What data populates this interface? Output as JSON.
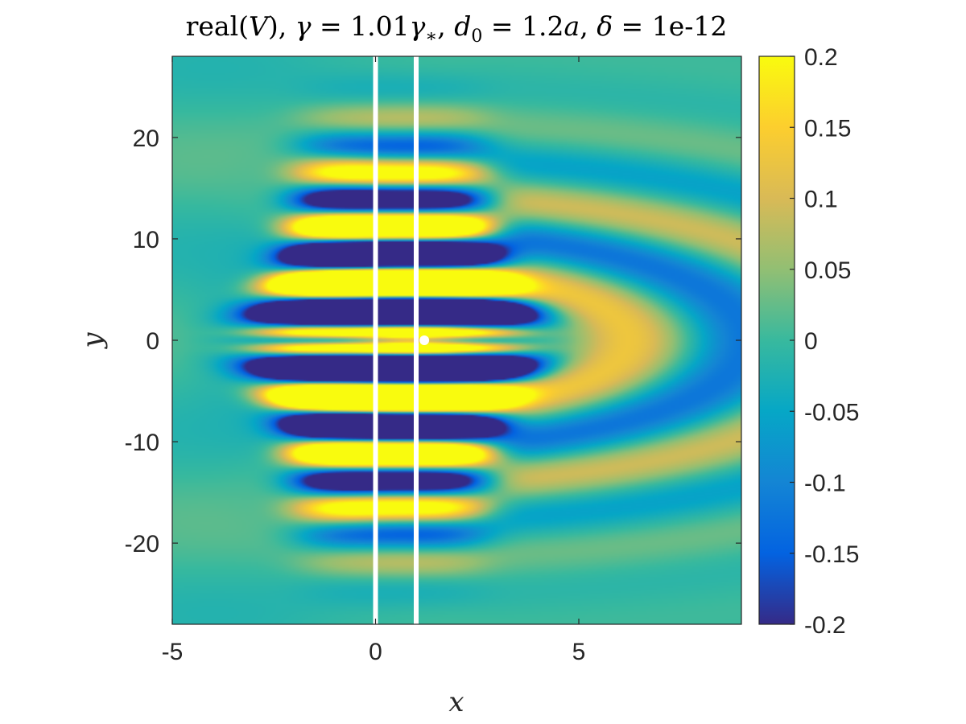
{
  "chart_data": {
    "type": "heatmap",
    "title": "real(V), γ = 1.01γ*, d0 = 1.2a, δ = 1e-12",
    "title_parts": {
      "p1": "real(",
      "p2": "V",
      "p3": "), ",
      "p4": "γ",
      "p5": " = 1.01",
      "p6": "γ",
      "p7": "∗",
      "p8": ", ",
      "p9": "d",
      "p10": "0",
      "p11": " = 1.2",
      "p12": "a",
      "p13": ", ",
      "p14": "δ",
      "p15": " = 1e-12"
    },
    "xlabel": "x",
    "ylabel": "y",
    "xlim": [
      -5,
      9
    ],
    "ylim": [
      -28,
      28
    ],
    "x_ticks": [
      {
        "value": -5,
        "label": "-5"
      },
      {
        "value": 0,
        "label": "0"
      },
      {
        "value": 5,
        "label": "5"
      }
    ],
    "y_ticks": [
      {
        "value": 20,
        "label": "20"
      },
      {
        "value": 10,
        "label": "10"
      },
      {
        "value": 0,
        "label": "0"
      },
      {
        "value": -10,
        "label": "-10"
      },
      {
        "value": -20,
        "label": "-20"
      }
    ],
    "colorbar": {
      "range": [
        -0.2,
        0.2
      ],
      "colormap": "parula",
      "ticks": [
        {
          "value": 0.2,
          "label": "0.2"
        },
        {
          "value": 0.15,
          "label": "0.15"
        },
        {
          "value": 0.1,
          "label": "0.1"
        },
        {
          "value": 0.05,
          "label": "0.05"
        },
        {
          "value": 0,
          "label": "0"
        },
        {
          "value": -0.05,
          "label": "-0.05"
        },
        {
          "value": -0.1,
          "label": "-0.1"
        },
        {
          "value": -0.15,
          "label": "-0.15"
        },
        {
          "value": -0.2,
          "label": "-0.2"
        }
      ]
    },
    "overlay_lines": [
      {
        "x": 0,
        "color": "#ffffff"
      },
      {
        "x": 1,
        "color": "#ffffff"
      }
    ],
    "marker_point": {
      "x": 1.2,
      "y": 0,
      "color": "#ffffff"
    },
    "grid": false,
    "legend": "none"
  }
}
